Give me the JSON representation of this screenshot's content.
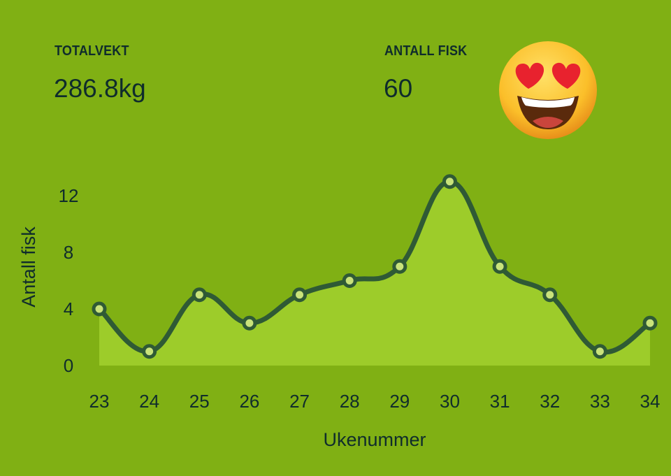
{
  "stats": {
    "total_weight": {
      "label": "TOTALVEKT",
      "value": "286.8kg"
    },
    "fish_count": {
      "label": "ANTALL FISK",
      "value": "60"
    }
  },
  "emoji_icon": "smiling-face-with-heart-eyes",
  "colors": {
    "background": "#80b014",
    "area_fill": "#9dcc2a",
    "line": "#2f5a35",
    "text": "#0f2c2c"
  },
  "chart_data": {
    "type": "area",
    "x": [
      23,
      24,
      25,
      26,
      27,
      28,
      29,
      30,
      31,
      32,
      33,
      34
    ],
    "values": [
      4,
      1,
      5,
      3,
      5,
      6,
      7,
      13,
      7,
      5,
      1,
      3
    ],
    "xlabel": "Ukenummer",
    "ylabel": "Antall fisk",
    "yticks": [
      0,
      4,
      8,
      12
    ],
    "ylim": [
      0,
      13
    ],
    "grid": false,
    "smooth": true
  }
}
